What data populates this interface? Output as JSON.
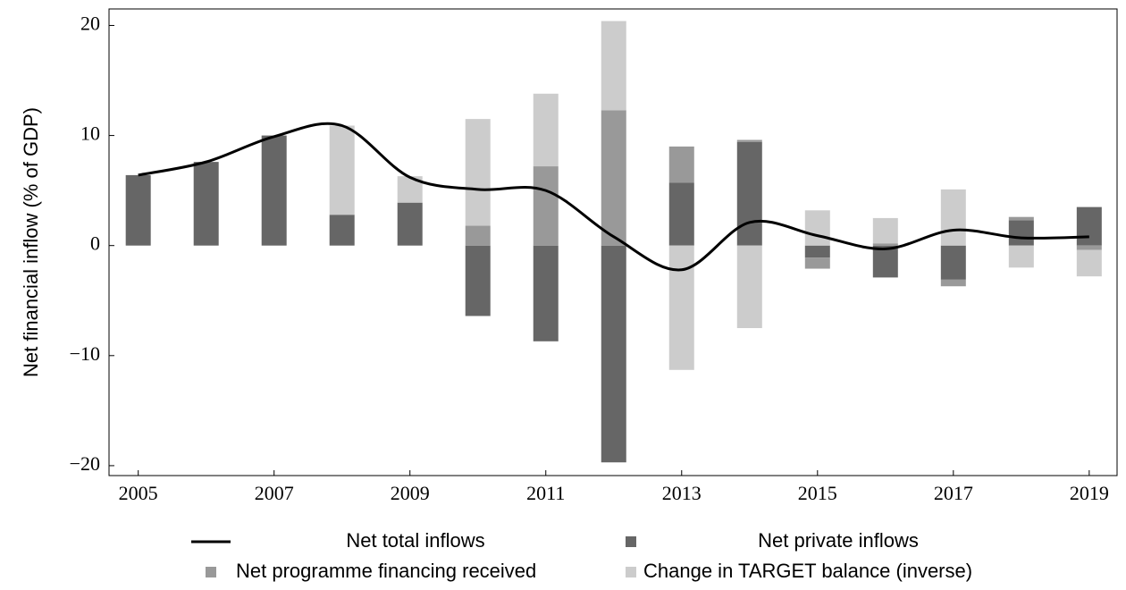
{
  "chart_data": {
    "type": "bar",
    "ylabel": "Net financial inflow (% of GDP)",
    "x": [
      2005,
      2006,
      2007,
      2008,
      2009,
      2010,
      2011,
      2012,
      2013,
      2014,
      2015,
      2016,
      2017,
      2018,
      2019
    ],
    "series": [
      {
        "name": "Net total inflows",
        "type": "line",
        "color": "#000000",
        "values": [
          6.4,
          7.6,
          9.9,
          10.9,
          6.2,
          5.1,
          5.0,
          0.8,
          -2.2,
          2.1,
          0.9,
          -0.3,
          1.4,
          0.7,
          0.8
        ]
      },
      {
        "name": "Net private inflows",
        "type": "bar",
        "color": "#666666",
        "values": [
          6.4,
          7.6,
          10.0,
          2.8,
          3.9,
          -6.4,
          -8.7,
          -19.7,
          5.7,
          9.4,
          -1.1,
          -2.9,
          -3.1,
          2.3,
          3.5
        ]
      },
      {
        "name": "Net programme financing received",
        "type": "bar",
        "color": "#999999",
        "values": [
          0,
          0,
          0,
          0,
          0,
          1.8,
          7.2,
          12.3,
          3.3,
          0.2,
          -1.0,
          0.2,
          -0.6,
          0.3,
          -0.4
        ]
      },
      {
        "name": "Change in TARGET balance (inverse)",
        "type": "bar",
        "color": "#cccccc",
        "values": [
          0,
          0,
          0,
          8.1,
          2.4,
          9.7,
          6.6,
          8.1,
          -11.3,
          -7.5,
          3.2,
          2.3,
          5.1,
          -2.0,
          -2.4
        ]
      }
    ],
    "xlim": [
      2004.57,
      2019.41
    ],
    "xticks": [
      2005,
      2007,
      2009,
      2011,
      2013,
      2015,
      2017,
      2019
    ],
    "ylim": [
      -20.9,
      21.5
    ],
    "yticks": [
      {
        "value": -20,
        "label": "−20"
      },
      {
        "value": -10,
        "label": "−10"
      },
      0,
      10,
      20
    ]
  }
}
